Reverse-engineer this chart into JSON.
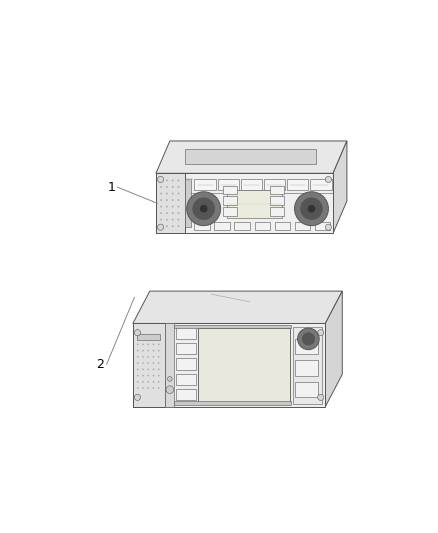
{
  "bg_color": "#ffffff",
  "fig_width": 4.38,
  "fig_height": 5.33,
  "dpi": 100,
  "label1": "1",
  "label2": "2",
  "lc": "#888888",
  "dc": "#555555",
  "fc_body": "#f5f5f5",
  "fc_side": "#e8e8e8",
  "fc_top": "#eeeeee",
  "fc_screen": "#f0f0e8",
  "fc_btn": "#f2f2f2",
  "fc_knob": "#666666",
  "fc_grille": "#dddddd",
  "lw_main": 0.7,
  "lw_thin": 0.4
}
